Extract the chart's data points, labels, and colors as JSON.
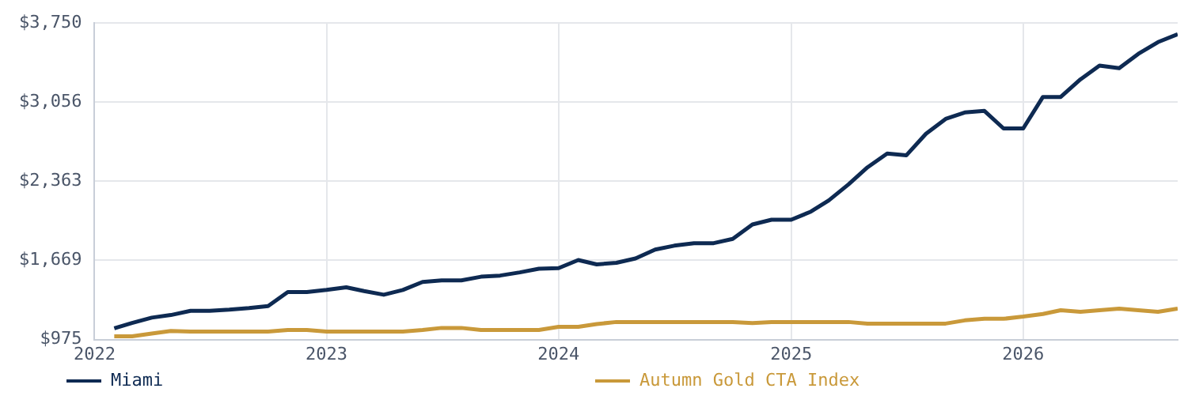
{
  "chart_data": {
    "type": "line",
    "x": [
      "2022-02",
      "2022-03",
      "2022-04",
      "2022-05",
      "2022-06",
      "2022-07",
      "2022-08",
      "2022-09",
      "2022-10",
      "2022-11",
      "2022-12",
      "2023-01",
      "2023-02",
      "2023-03",
      "2023-04",
      "2023-05",
      "2023-06",
      "2023-07",
      "2023-08",
      "2023-09",
      "2023-10",
      "2023-11",
      "2023-12",
      "2024-01",
      "2024-02",
      "2024-03",
      "2024-04",
      "2024-05",
      "2024-06",
      "2024-07",
      "2024-08",
      "2024-09",
      "2024-10",
      "2024-11",
      "2024-12",
      "2025-01",
      "2025-02",
      "2025-03",
      "2025-04",
      "2025-05",
      "2025-06",
      "2025-07",
      "2025-08",
      "2025-09",
      "2025-10",
      "2025-11",
      "2025-12",
      "2026-01",
      "2026-02",
      "2026-03",
      "2026-04",
      "2026-05",
      "2026-06",
      "2026-07",
      "2026-08",
      "2026-09"
    ],
    "series": [
      {
        "name": "Miami",
        "color": "#0e2a52",
        "values": [
          1073,
          1120,
          1167,
          1190,
          1227,
          1227,
          1237,
          1251,
          1269,
          1391,
          1391,
          1410,
          1433,
          1400,
          1368,
          1410,
          1480,
          1494,
          1494,
          1526,
          1536,
          1564,
          1596,
          1601,
          1672,
          1634,
          1648,
          1686,
          1764,
          1798,
          1820,
          1820,
          1858,
          1984,
          2026,
          2026,
          2097,
          2195,
          2335,
          2485,
          2606,
          2590,
          2779,
          2910,
          2966,
          2980,
          2826,
          2826,
          3102,
          3102,
          3256,
          3377,
          3354,
          3480,
          3583,
          3653
        ]
      },
      {
        "name": "Autumn Gold CTA Index",
        "color": "#c9993a",
        "values": [
          1003,
          1003,
          1027,
          1050,
          1045,
          1045,
          1045,
          1045,
          1045,
          1059,
          1059,
          1045,
          1045,
          1045,
          1045,
          1045,
          1059,
          1077,
          1077,
          1059,
          1059,
          1059,
          1059,
          1087,
          1087,
          1111,
          1129,
          1129,
          1129,
          1129,
          1129,
          1129,
          1129,
          1120,
          1129,
          1129,
          1129,
          1129,
          1129,
          1115,
          1115,
          1115,
          1115,
          1115,
          1143,
          1157,
          1157,
          1176,
          1199,
          1232,
          1218,
          1232,
          1246,
          1232,
          1218,
          1246
        ]
      }
    ],
    "xlim": [
      "2022-01",
      "2026-09"
    ],
    "xticks": [
      {
        "value": "2022",
        "label": "2022"
      },
      {
        "value": "2023",
        "label": "2023"
      },
      {
        "value": "2024",
        "label": "2024"
      },
      {
        "value": "2025",
        "label": "2025"
      },
      {
        "value": "2026",
        "label": "2026"
      }
    ],
    "ylim": [
      975,
      3750
    ],
    "yticks": [
      {
        "value": 975,
        "label": "$975"
      },
      {
        "value": 1669,
        "label": "$1,669"
      },
      {
        "value": 2363,
        "label": "$2,363"
      },
      {
        "value": 3056,
        "label": "$3,056"
      },
      {
        "value": 3750,
        "label": "$3,750"
      }
    ],
    "grid": true,
    "legend": "bottom",
    "marker": "none",
    "line_style": "solid"
  }
}
